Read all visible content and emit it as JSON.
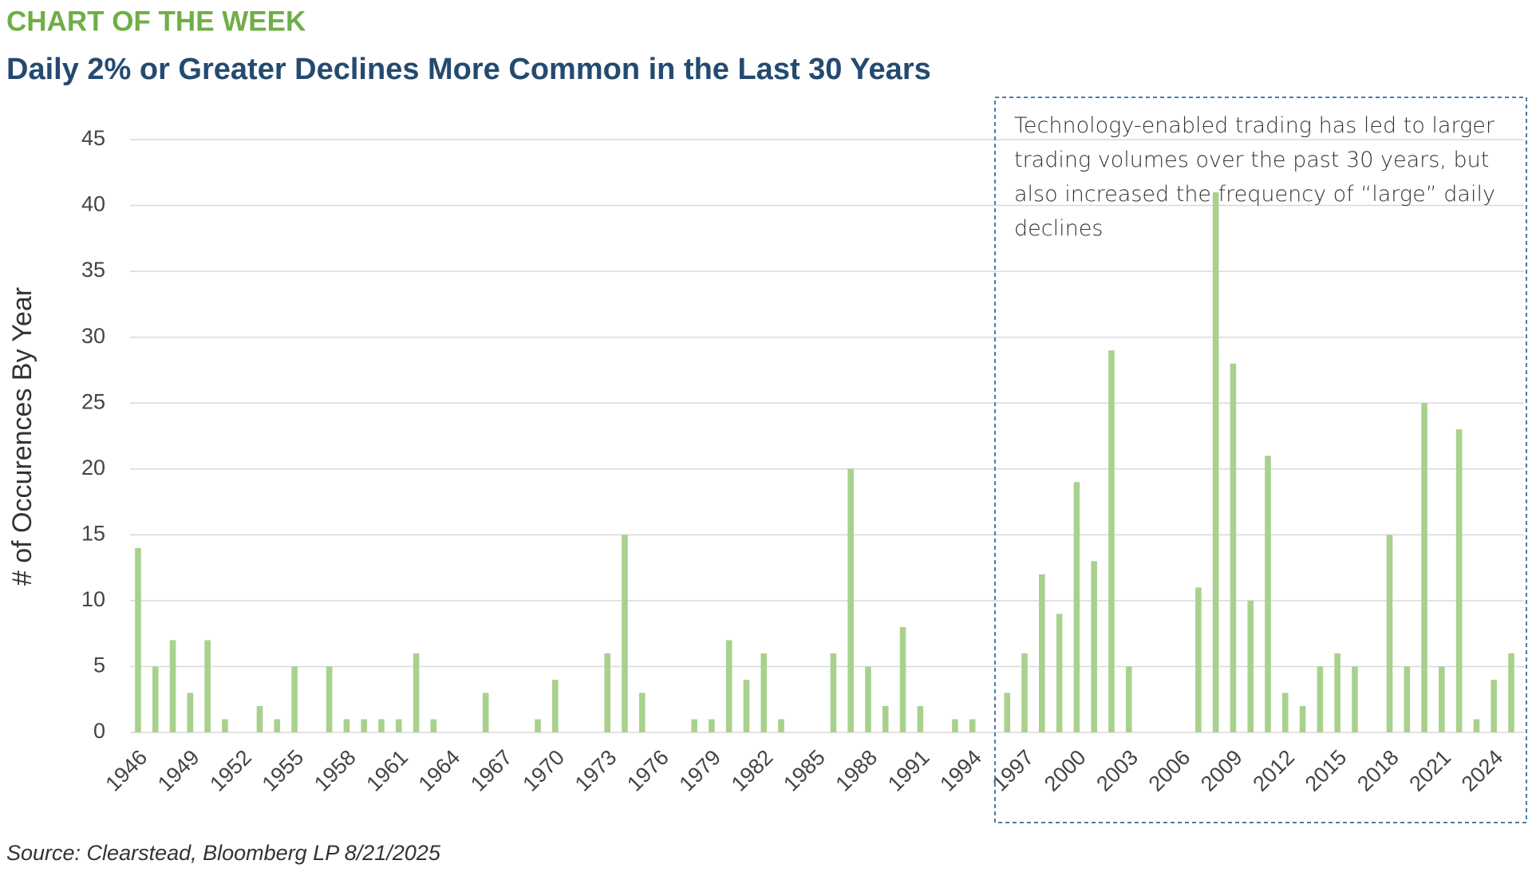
{
  "chart_data": {
    "type": "bar",
    "kicker": "CHART OF THE WEEK",
    "title": "Daily 2% or Greater Declines More Common in the Last 30 Years",
    "y_label": "# of Occurences By Year",
    "annotation": "Technology-enabled trading has led to larger trading volumes over the past 30 years, but also increased the frequency of “large” daily declines",
    "source": "Source: Clearstead, Bloomberg LP 8/21/2025",
    "categories": [
      "1946",
      null,
      null,
      "1949",
      null,
      null,
      "1952",
      null,
      null,
      "1955",
      null,
      null,
      "1958",
      null,
      null,
      "1961",
      null,
      null,
      "1964",
      null,
      null,
      "1967",
      null,
      null,
      "1970",
      null,
      null,
      "1973",
      null,
      null,
      "1976",
      null,
      null,
      "1979",
      null,
      null,
      "1982",
      null,
      null,
      "1985",
      null,
      null,
      "1988",
      null,
      null,
      "1991",
      null,
      null,
      "1994",
      null,
      null,
      "1997",
      null,
      null,
      "2000",
      null,
      null,
      "2003",
      null,
      null,
      "2006",
      null,
      null,
      "2009",
      null,
      null,
      "2012",
      null,
      null,
      "2015",
      null,
      null,
      "2018",
      null,
      null,
      "2021",
      null,
      null,
      "2024",
      null
    ],
    "values": [
      14,
      5,
      7,
      3,
      7,
      1,
      0,
      2,
      1,
      5,
      0,
      5,
      1,
      1,
      1,
      1,
      6,
      1,
      0,
      0,
      3,
      0,
      0,
      1,
      4,
      0,
      0,
      6,
      15,
      3,
      0,
      0,
      1,
      1,
      7,
      4,
      6,
      1,
      0,
      0,
      6,
      20,
      5,
      2,
      8,
      2,
      0,
      1,
      1,
      0,
      3,
      6,
      12,
      9,
      19,
      13,
      29,
      5,
      0,
      0,
      0,
      11,
      41,
      28,
      10,
      21,
      3,
      2,
      5,
      6,
      5,
      0,
      15,
      5,
      25,
      5,
      23,
      1,
      4,
      6
    ],
    "color": "#a9d18e",
    "ylim": [
      0,
      45
    ],
    "yticks": [
      0,
      5,
      10,
      15,
      20,
      25,
      30,
      35,
      40,
      45
    ],
    "grid": true
  }
}
